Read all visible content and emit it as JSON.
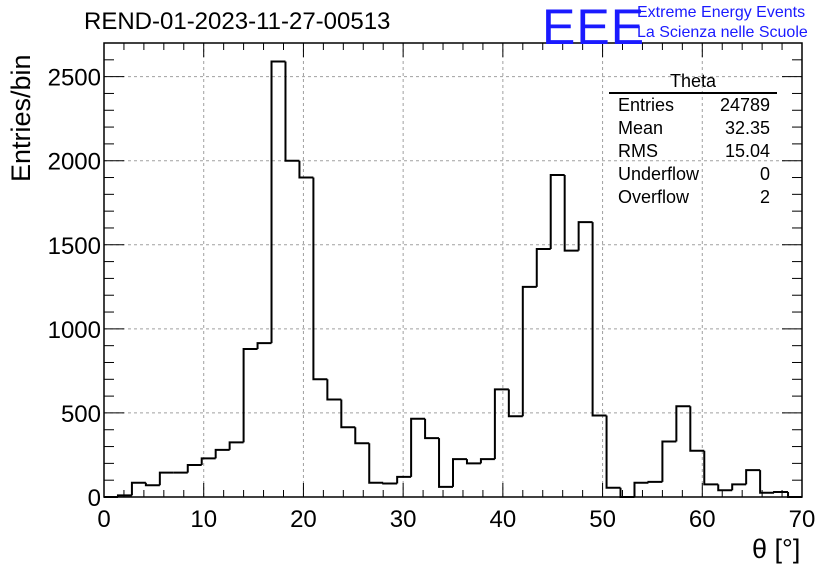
{
  "chart_data": {
    "type": "histogram",
    "title": "REND-01-2023-11-27-00513",
    "xlabel": "θ [°]",
    "ylabel": "Entries/bin",
    "xlim": [
      0,
      70
    ],
    "ylim": [
      0,
      2700
    ],
    "grid": true,
    "x_ticks": [
      0,
      10,
      20,
      30,
      40,
      50,
      60,
      70
    ],
    "y_ticks": [
      0,
      500,
      1000,
      1500,
      2000,
      2500
    ],
    "bin_width": 1.4,
    "bin_edges_start": 0,
    "values": [
      0,
      10,
      85,
      70,
      145,
      145,
      190,
      230,
      280,
      325,
      880,
      915,
      2590,
      2000,
      1900,
      700,
      580,
      415,
      320,
      85,
      80,
      120,
      465,
      350,
      60,
      225,
      200,
      225,
      640,
      480,
      1250,
      1475,
      1915,
      1465,
      1635,
      485,
      55,
      0,
      85,
      90,
      330,
      540,
      275,
      75,
      40,
      75,
      160,
      25,
      30,
      0
    ],
    "stats_box": {
      "title": "Theta",
      "rows": [
        {
          "label": "Entries",
          "value": "24789"
        },
        {
          "label": "Mean",
          "value": "32.35"
        },
        {
          "label": "RMS",
          "value": "15.04"
        },
        {
          "label": "Underflow",
          "value": "0"
        },
        {
          "label": "Overflow",
          "value": "2"
        }
      ],
      "placement": "top-right"
    }
  },
  "logo": {
    "mark": "EEE",
    "line1": "Extreme Energy Events",
    "line2": "La Scienza nelle Scuole",
    "color": "#1a1aff"
  }
}
